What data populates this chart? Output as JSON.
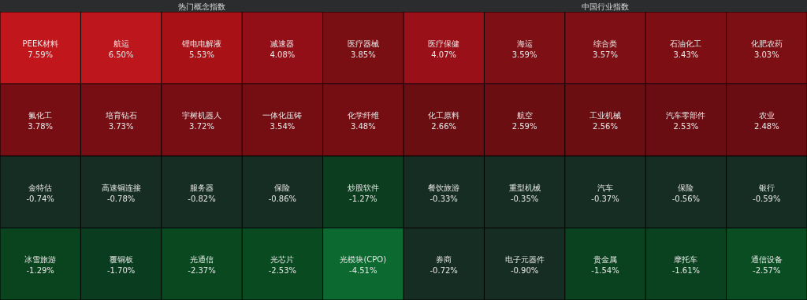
{
  "chart_data": [
    {
      "type": "other",
      "title": "热门概念指数",
      "categories": [
        "PEEK材料",
        "航运",
        "锂电电解液",
        "减速器",
        "医疗器械",
        "氟化工",
        "培育钻石",
        "宇树机器人",
        "一体化压铸",
        "化学纤维",
        "金特估",
        "高速铜连接",
        "服务器",
        "保险",
        "炒股软件",
        "冰雪旅游",
        "覆铜板",
        "光通信",
        "光芯片",
        "光模块(CPO)"
      ],
      "values": [
        7.59,
        6.5,
        5.53,
        4.08,
        3.85,
        3.78,
        3.73,
        3.72,
        3.54,
        3.48,
        -0.74,
        -0.78,
        -0.82,
        -0.86,
        -1.27,
        -1.29,
        -1.7,
        -2.37,
        -2.53,
        -4.51
      ],
      "value_labels": [
        "7.59%",
        "6.50%",
        "5.53%",
        "4.08%",
        "3.85%",
        "3.78%",
        "3.73%",
        "3.72%",
        "3.54%",
        "3.48%",
        "-0.74%",
        "-0.78%",
        "-0.82%",
        "-0.86%",
        "-1.27%",
        "-1.29%",
        "-1.70%",
        "-2.37%",
        "-2.53%",
        "-4.51%"
      ],
      "colors": [
        "#c0161c",
        "#c0161c",
        "#ad1218",
        "#9a1018",
        "#7f0f14",
        "#7c0f14",
        "#7c0f14",
        "#7c0f14",
        "#7c0f14",
        "#7c0f14",
        "#183126",
        "#183126",
        "#183126",
        "#183126",
        "#0c4321",
        "#0b4a22",
        "#0b4222",
        "#0b4f22",
        "#0b4f22",
        "#0d6e33"
      ]
    },
    {
      "type": "other",
      "title": "中国行业指数",
      "categories": [
        "医疗保健",
        "海运",
        "综合类",
        "石油化工",
        "化肥农药",
        "化工原料",
        "航空",
        "工业机械",
        "汽车零部件",
        "农业",
        "餐饮旅游",
        "重型机械",
        "汽车",
        "保险",
        "银行",
        "券商",
        "电子元器件",
        "贵金属",
        "摩托车",
        "通信设备"
      ],
      "values": [
        4.07,
        3.59,
        3.57,
        3.43,
        3.03,
        2.66,
        2.59,
        2.56,
        2.53,
        2.48,
        -0.33,
        -0.35,
        -0.37,
        -0.56,
        -0.59,
        -0.72,
        -0.9,
        -1.54,
        -1.61,
        -2.57
      ],
      "value_labels": [
        "4.07%",
        "3.59%",
        "3.57%",
        "3.43%",
        "3.03%",
        "2.66%",
        "2.59%",
        "2.56%",
        "2.53%",
        "2.48%",
        "-0.33%",
        "-0.35%",
        "-0.37%",
        "-0.56%",
        "-0.59%",
        "-0.72%",
        "-0.90%",
        "-1.54%",
        "-1.61%",
        "-2.57%"
      ],
      "colors": [
        "#9a1018",
        "#7f0f14",
        "#7f0f14",
        "#7f0f14",
        "#7f0f14",
        "#6e0e13",
        "#6e0e13",
        "#6e0e13",
        "#6e0e13",
        "#6e0e13",
        "#183126",
        "#183126",
        "#183126",
        "#183126",
        "#183126",
        "#183126",
        "#183126",
        "#0b4621",
        "#0b4621",
        "#0b5024"
      ]
    }
  ]
}
